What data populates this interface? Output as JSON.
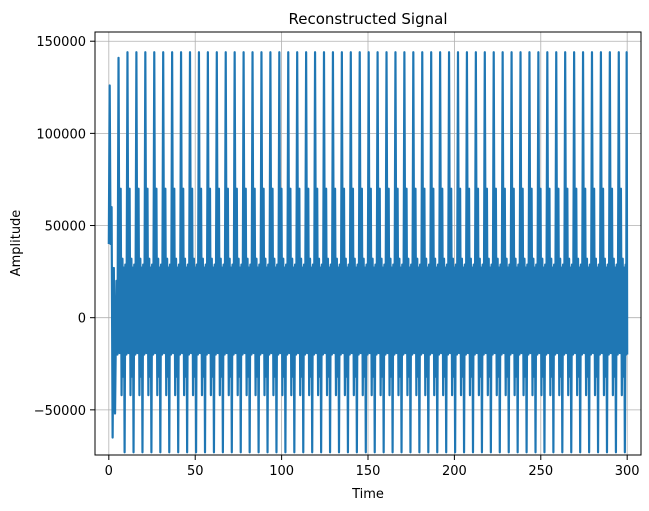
{
  "chart_data": {
    "type": "line",
    "title": "Reconstructed Signal",
    "xlabel": "Time",
    "ylabel": "Amplitude",
    "xlim": [
      -8,
      308
    ],
    "ylim": [
      -74500,
      155000
    ],
    "xticks": [
      0,
      50,
      100,
      150,
      200,
      250,
      300
    ],
    "xtick_labels": [
      "0",
      "50",
      "100",
      "150",
      "200",
      "250",
      "300"
    ],
    "yticks": [
      -50000,
      0,
      50000,
      100000,
      150000
    ],
    "ytick_labels": [
      "−50000",
      "0",
      "50000",
      "100000",
      "150000"
    ],
    "grid": true,
    "color": "#1f77b4",
    "series": [
      {
        "period": 5.17,
        "x_range": [
          0,
          300
        ],
        "initial_peaks": [
          {
            "x": 0.5,
            "y": 126000
          },
          {
            "x": 1.0,
            "y": 40000
          },
          {
            "x": 7.0,
            "y": 141000
          }
        ],
        "high_peak": 144000,
        "mid_peak": 70000,
        "low_peak": 32000,
        "min_value": -73000,
        "mid_low": -42000,
        "band_low": -20000
      }
    ]
  }
}
